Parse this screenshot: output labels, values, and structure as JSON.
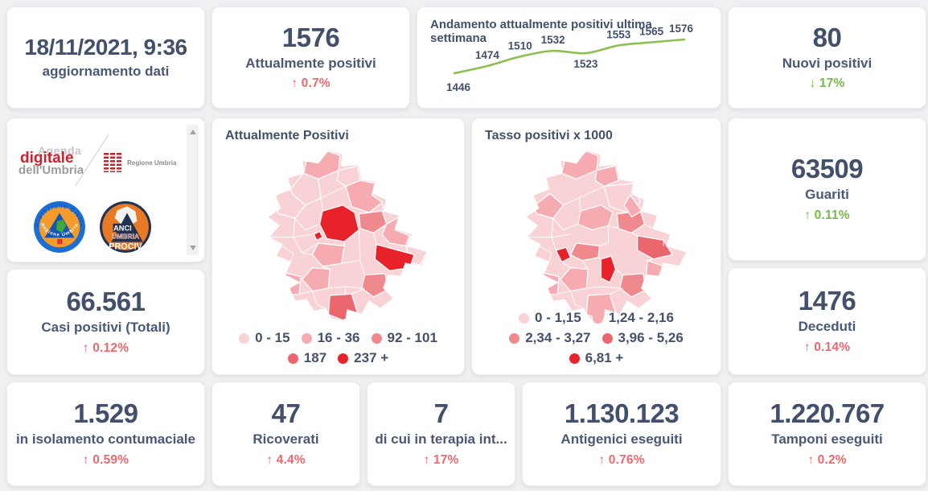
{
  "colors": {
    "navy_text": "#42506b",
    "delta_red": "#ed686d",
    "delta_green": "#74ba44",
    "trend_line_green": "#8cc152",
    "map_scale": [
      "#f9d2d6",
      "#f5abb0",
      "#f0898e",
      "#ec676d",
      "#e8222b"
    ],
    "page_background": "#eff0f1",
    "card_background": "#ffffff"
  },
  "cards": {
    "updated": {
      "value": "18/11/2021, 9:36",
      "label": "aggiornamento dati"
    },
    "attualmente": {
      "value": "1576",
      "label": "Attualmente positivi",
      "delta": "↑ 0.7%"
    },
    "nuovi": {
      "value": "80",
      "label": "Nuovi positivi",
      "delta": "↓ 17%"
    },
    "guariti": {
      "value": "63509",
      "label": "Guariti",
      "delta": "↑ 0.11%"
    },
    "casi": {
      "value": "66.561",
      "label": "Casi positivi (Totali)",
      "delta": "↑ 0.12%"
    },
    "deceduti": {
      "value": "1476",
      "label": "Deceduti",
      "delta": "↑ 0.14%"
    },
    "isolamento": {
      "value": "1.529",
      "label": "in isolamento contumaciale",
      "delta": "↑ 0.59%"
    },
    "ricoverati": {
      "value": "47",
      "label": "Ricoverati",
      "delta": "↑ 4.4%"
    },
    "terapia": {
      "value": "7",
      "label": "di cui in terapia int...",
      "delta": "↑ 17%"
    },
    "antigenici": {
      "value": "1.130.123",
      "label": "Antigenici eseguiti",
      "delta": "↑ 0.76%"
    },
    "tamponi": {
      "value": "1.220.767",
      "label": "Tamponi eseguiti",
      "delta": "↑ 0.2%"
    }
  },
  "chart_data": {
    "type": "line",
    "title": "Andamento attualmente positivi ultima settimana",
    "x": [
      1,
      2,
      3,
      4,
      5,
      6,
      7,
      8
    ],
    "values": [
      1446,
      1474,
      1510,
      1532,
      1523,
      1553,
      1565,
      1576
    ],
    "xlabel": "",
    "ylabel": "",
    "ylim": [
      1440,
      1590
    ],
    "grid": false,
    "axes_hidden": true,
    "legend_position": "none",
    "line_color": "#8cc152",
    "label_color": "#42506b"
  },
  "maps": [
    {
      "title": "Attualmente Positivi",
      "legend": [
        {
          "label": "0 - 15",
          "color": "#f9d2d6"
        },
        {
          "label": "16 - 36",
          "color": "#f5abb0"
        },
        {
          "label": "92 - 101",
          "color": "#f0898e"
        },
        {
          "label": "187",
          "color": "#ec676d"
        },
        {
          "label": "237 +",
          "color": "#e8222b"
        }
      ]
    },
    {
      "title": "Tasso positivi x 1000",
      "legend": [
        {
          "label": "0 - 1,15",
          "color": "#f9d2d6"
        },
        {
          "label": "1,24 - 2,16",
          "color": "#f5abb0"
        },
        {
          "label": "2,34 - 3,27",
          "color": "#f0898e"
        },
        {
          "label": "3,96 - 5,26",
          "color": "#ec676d"
        },
        {
          "label": "6,81 +",
          "color": "#e8222b"
        }
      ]
    }
  ],
  "logos": {
    "agenda": {
      "line1": "Agenda",
      "line2": "digitale",
      "line3": "dell'Umbria"
    },
    "regione": "Regione Umbria",
    "protezione": {
      "ring": "Protezione Civile",
      "bottom": "Regione Umbria"
    },
    "anci": {
      "top": "ANCI",
      "mid": "UMBRIA",
      "bottom": "PROCIV"
    }
  }
}
